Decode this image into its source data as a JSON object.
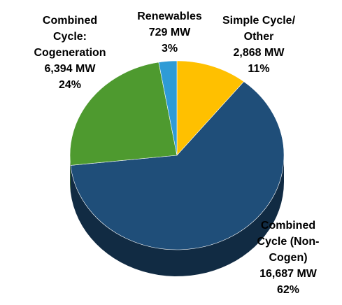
{
  "chart_data": {
    "type": "pie3d",
    "categories": [
      "Simple Cycle/ Other",
      "Combined Cycle (Non-Cogen)",
      "Combined Cycle: Cogeneration",
      "Renewables"
    ],
    "values": [
      2868,
      16687,
      6394,
      729
    ],
    "value_labels": [
      "2,868 MW",
      "16,687 MW",
      "6,394 MW",
      "729 MW"
    ],
    "percent_labels": [
      "11%",
      "62%",
      "24%",
      "3%"
    ],
    "colors": [
      "#ffc000",
      "#1f4e79",
      "#4e9a2f",
      "#2e9bd6"
    ]
  }
}
